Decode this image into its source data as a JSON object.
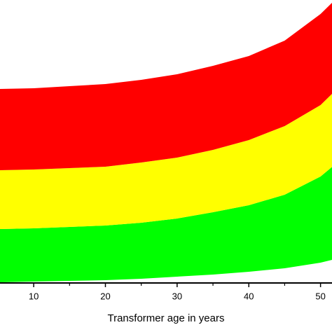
{
  "chart_data": {
    "type": "stacked_area",
    "x_label": "Transformer age in years",
    "x": [
      5,
      10,
      15,
      20,
      25,
      30,
      35,
      40,
      45,
      50,
      52
    ],
    "series": [
      {
        "color": "#ffffff",
        "values": [
          0.25,
          0.5,
          0.75,
          1,
          1.5,
          2.25,
          3,
          4,
          5.25,
          7.25,
          8.5
        ]
      },
      {
        "color": "#00ff00",
        "values": [
          19,
          19,
          19.25,
          19.5,
          20,
          20.75,
          22.25,
          23.75,
          26.25,
          30.75,
          33.75
        ]
      },
      {
        "color": "#ffff00",
        "values": [
          21,
          21,
          21,
          21,
          21.5,
          21.75,
          22.25,
          23.25,
          24.5,
          25.5,
          26.25
        ]
      },
      {
        "color": "#ff0000",
        "values": [
          29,
          29,
          29.25,
          29.5,
          29.5,
          29.75,
          30,
          30,
          30.5,
          32.5,
          32.5
        ]
      }
    ],
    "xlim": [
      5.3,
      51.6
    ],
    "ylim": [
      0,
      101
    ],
    "xticks": [
      10,
      20,
      30,
      40,
      50
    ],
    "xminorticks": [
      15,
      25,
      35,
      45
    ]
  }
}
